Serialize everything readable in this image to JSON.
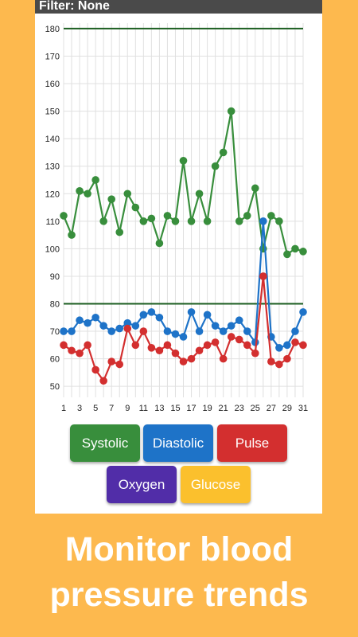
{
  "header": {
    "filter_text": "Filter: None"
  },
  "buttons": [
    {
      "label": "Systolic",
      "color": "#388E3C"
    },
    {
      "label": "Diastolic",
      "color": "#1E73C8"
    },
    {
      "label": "Pulse",
      "color": "#D32F2F"
    },
    {
      "label": "Oxygen",
      "color": "#512DA8"
    },
    {
      "label": "Glucose",
      "color": "#FBC02D"
    }
  ],
  "headline": {
    "line1": "Monitor blood",
    "line2": "pressure trends"
  },
  "colors": {
    "background": "#FDB94E",
    "card": "#FFFFFF",
    "filter_bar": "#4A4A4A",
    "reference_line": "#1B5E20"
  },
  "chart_data": {
    "type": "line",
    "x": [
      1,
      2,
      3,
      4,
      5,
      6,
      7,
      8,
      9,
      10,
      11,
      12,
      13,
      14,
      15,
      16,
      17,
      18,
      19,
      20,
      21,
      22,
      23,
      24,
      25,
      26,
      27,
      28,
      29,
      30,
      31
    ],
    "x_tick_labels": [
      "1",
      "3",
      "5",
      "7",
      "9",
      "11",
      "13",
      "15",
      "17",
      "19",
      "21",
      "23",
      "25",
      "27",
      "29",
      "31"
    ],
    "ylim": [
      46,
      182
    ],
    "y_ticks": [
      50,
      60,
      70,
      80,
      90,
      100,
      110,
      120,
      130,
      140,
      150,
      160,
      170,
      180
    ],
    "grid": true,
    "reference_lines": [
      180,
      80
    ],
    "series": [
      {
        "color": "#388E3C",
        "values": [
          112,
          105,
          121,
          120,
          125,
          110,
          118,
          106,
          120,
          115,
          110,
          111,
          102,
          112,
          110,
          132,
          110,
          120,
          110,
          130,
          135,
          150,
          110,
          112,
          122,
          100,
          112,
          110,
          98,
          100,
          99
        ]
      },
      {
        "color": "#1E73C8",
        "values": [
          70,
          70,
          74,
          73,
          75,
          72,
          70,
          71,
          73,
          72,
          76,
          77,
          75,
          70,
          69,
          68,
          77,
          70,
          76,
          72,
          70,
          72,
          74,
          70,
          66,
          110,
          68,
          64,
          65,
          70,
          77
        ]
      },
      {
        "color": "#D32F2F",
        "values": [
          65,
          63,
          62,
          65,
          56,
          52,
          59,
          58,
          71,
          65,
          70,
          64,
          63,
          65,
          62,
          59,
          60,
          63,
          65,
          66,
          60,
          68,
          67,
          65,
          62,
          90,
          59,
          58,
          60,
          66,
          65
        ]
      }
    ]
  }
}
